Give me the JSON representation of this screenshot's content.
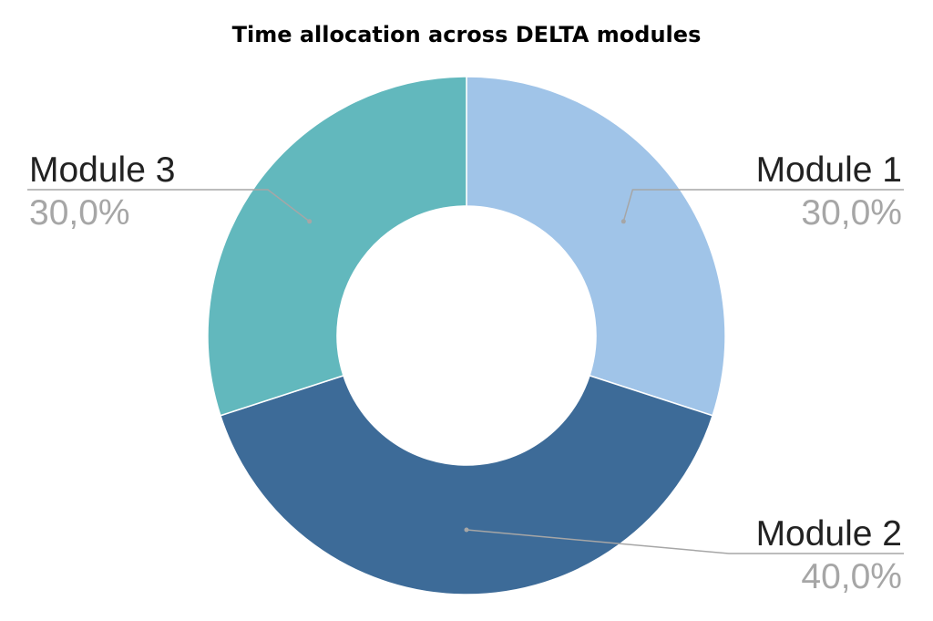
{
  "chart_data": {
    "type": "pie",
    "variant": "donut",
    "title": "Time allocation across DELTA modules",
    "slices": [
      {
        "label": "Module 1",
        "value": 30.0,
        "display": "30,0%",
        "color": "#a0c4e8"
      },
      {
        "label": "Module 2",
        "value": 40.0,
        "display": "40,0%",
        "color": "#3d6b98"
      },
      {
        "label": "Module 3",
        "value": 30.0,
        "display": "30,0%",
        "color": "#62b8bd"
      }
    ],
    "legend": "none",
    "leader_line_color": "#a6a6a6"
  }
}
